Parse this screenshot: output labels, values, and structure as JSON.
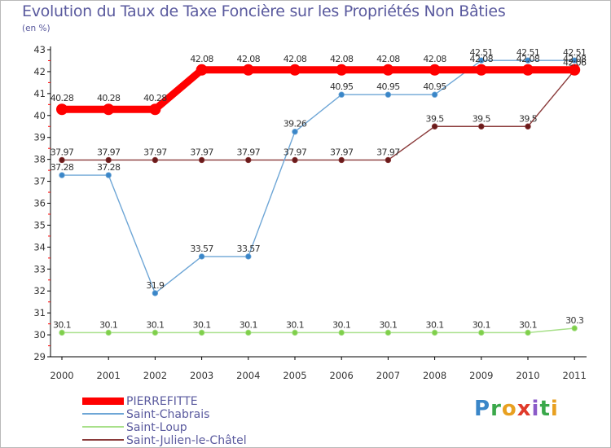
{
  "chart_data": {
    "type": "line",
    "title": "Evolution du Taux de Taxe Foncière sur les Propriétés Non Bâties",
    "ylabel": "(en %)",
    "xlabel": "",
    "x": [
      "2000",
      "2001",
      "2002",
      "2003",
      "2004",
      "2005",
      "2006",
      "2007",
      "2008",
      "2009",
      "2010",
      "2011"
    ],
    "yticks": [
      "29",
      "30",
      "31",
      "32",
      "33",
      "34",
      "35",
      "36",
      "37",
      "38",
      "39",
      "40",
      "41",
      "42",
      "43"
    ],
    "ylim": [
      29,
      43
    ],
    "grid": false,
    "legend_position": "bottom-left",
    "series": [
      {
        "name": "PIERREFITTE",
        "color": "#ff0000",
        "style": "bold",
        "values": [
          40.28,
          40.28,
          40.28,
          42.08,
          42.08,
          42.08,
          42.08,
          42.08,
          42.08,
          42.08,
          42.08,
          42.08
        ],
        "labels": [
          "40.28",
          "40.28",
          "40.28",
          "42.08",
          "42.08",
          "42.08",
          "42.08",
          "42.08",
          "42.08",
          "42.08",
          "42.08",
          "42.08"
        ]
      },
      {
        "name": "Saint-Chabrais",
        "color": "#6ea6d6",
        "marker_color": "#3a86c8",
        "values": [
          37.28,
          37.28,
          31.9,
          33.57,
          33.57,
          39.26,
          40.95,
          40.95,
          40.95,
          42.51,
          42.51,
          42.51
        ],
        "labels": [
          "37.28",
          "37.28",
          "31.9",
          "33.57",
          "33.57",
          "39.26",
          "40.95",
          "40.95",
          "40.95",
          "42.51",
          "42.51",
          "42.51"
        ]
      },
      {
        "name": "Saint-Loup",
        "color": "#a8e08a",
        "marker_color": "#7fcf4a",
        "values": [
          30.1,
          30.1,
          30.1,
          30.1,
          30.1,
          30.1,
          30.1,
          30.1,
          30.1,
          30.1,
          30.1,
          30.3
        ],
        "labels": [
          "30.1",
          "30.1",
          "30.1",
          "30.1",
          "30.1",
          "30.1",
          "30.1",
          "30.1",
          "30.1",
          "30.1",
          "30.1",
          "30.3"
        ]
      },
      {
        "name": "Saint-Julien-le-Châtel",
        "color": "#8a3a3a",
        "marker_color": "#6a1a1a",
        "values": [
          37.97,
          37.97,
          37.97,
          37.97,
          37.97,
          37.97,
          37.97,
          37.97,
          39.5,
          39.5,
          39.5,
          42.06
        ],
        "labels": [
          "37.97",
          "37.97",
          "37.97",
          "37.97",
          "37.97",
          "37.97",
          "37.97",
          "37.97",
          "39.5",
          "39.5",
          "39.5",
          "42.06"
        ]
      }
    ]
  },
  "logo": {
    "letters": [
      "P",
      "r",
      "o",
      "x",
      "i",
      "t",
      "i"
    ],
    "colors": [
      "#3a86c8",
      "#3aa84a",
      "#e8a020",
      "#e03a2a",
      "#8a5ac8",
      "#3aa84a",
      "#e8a020"
    ]
  }
}
